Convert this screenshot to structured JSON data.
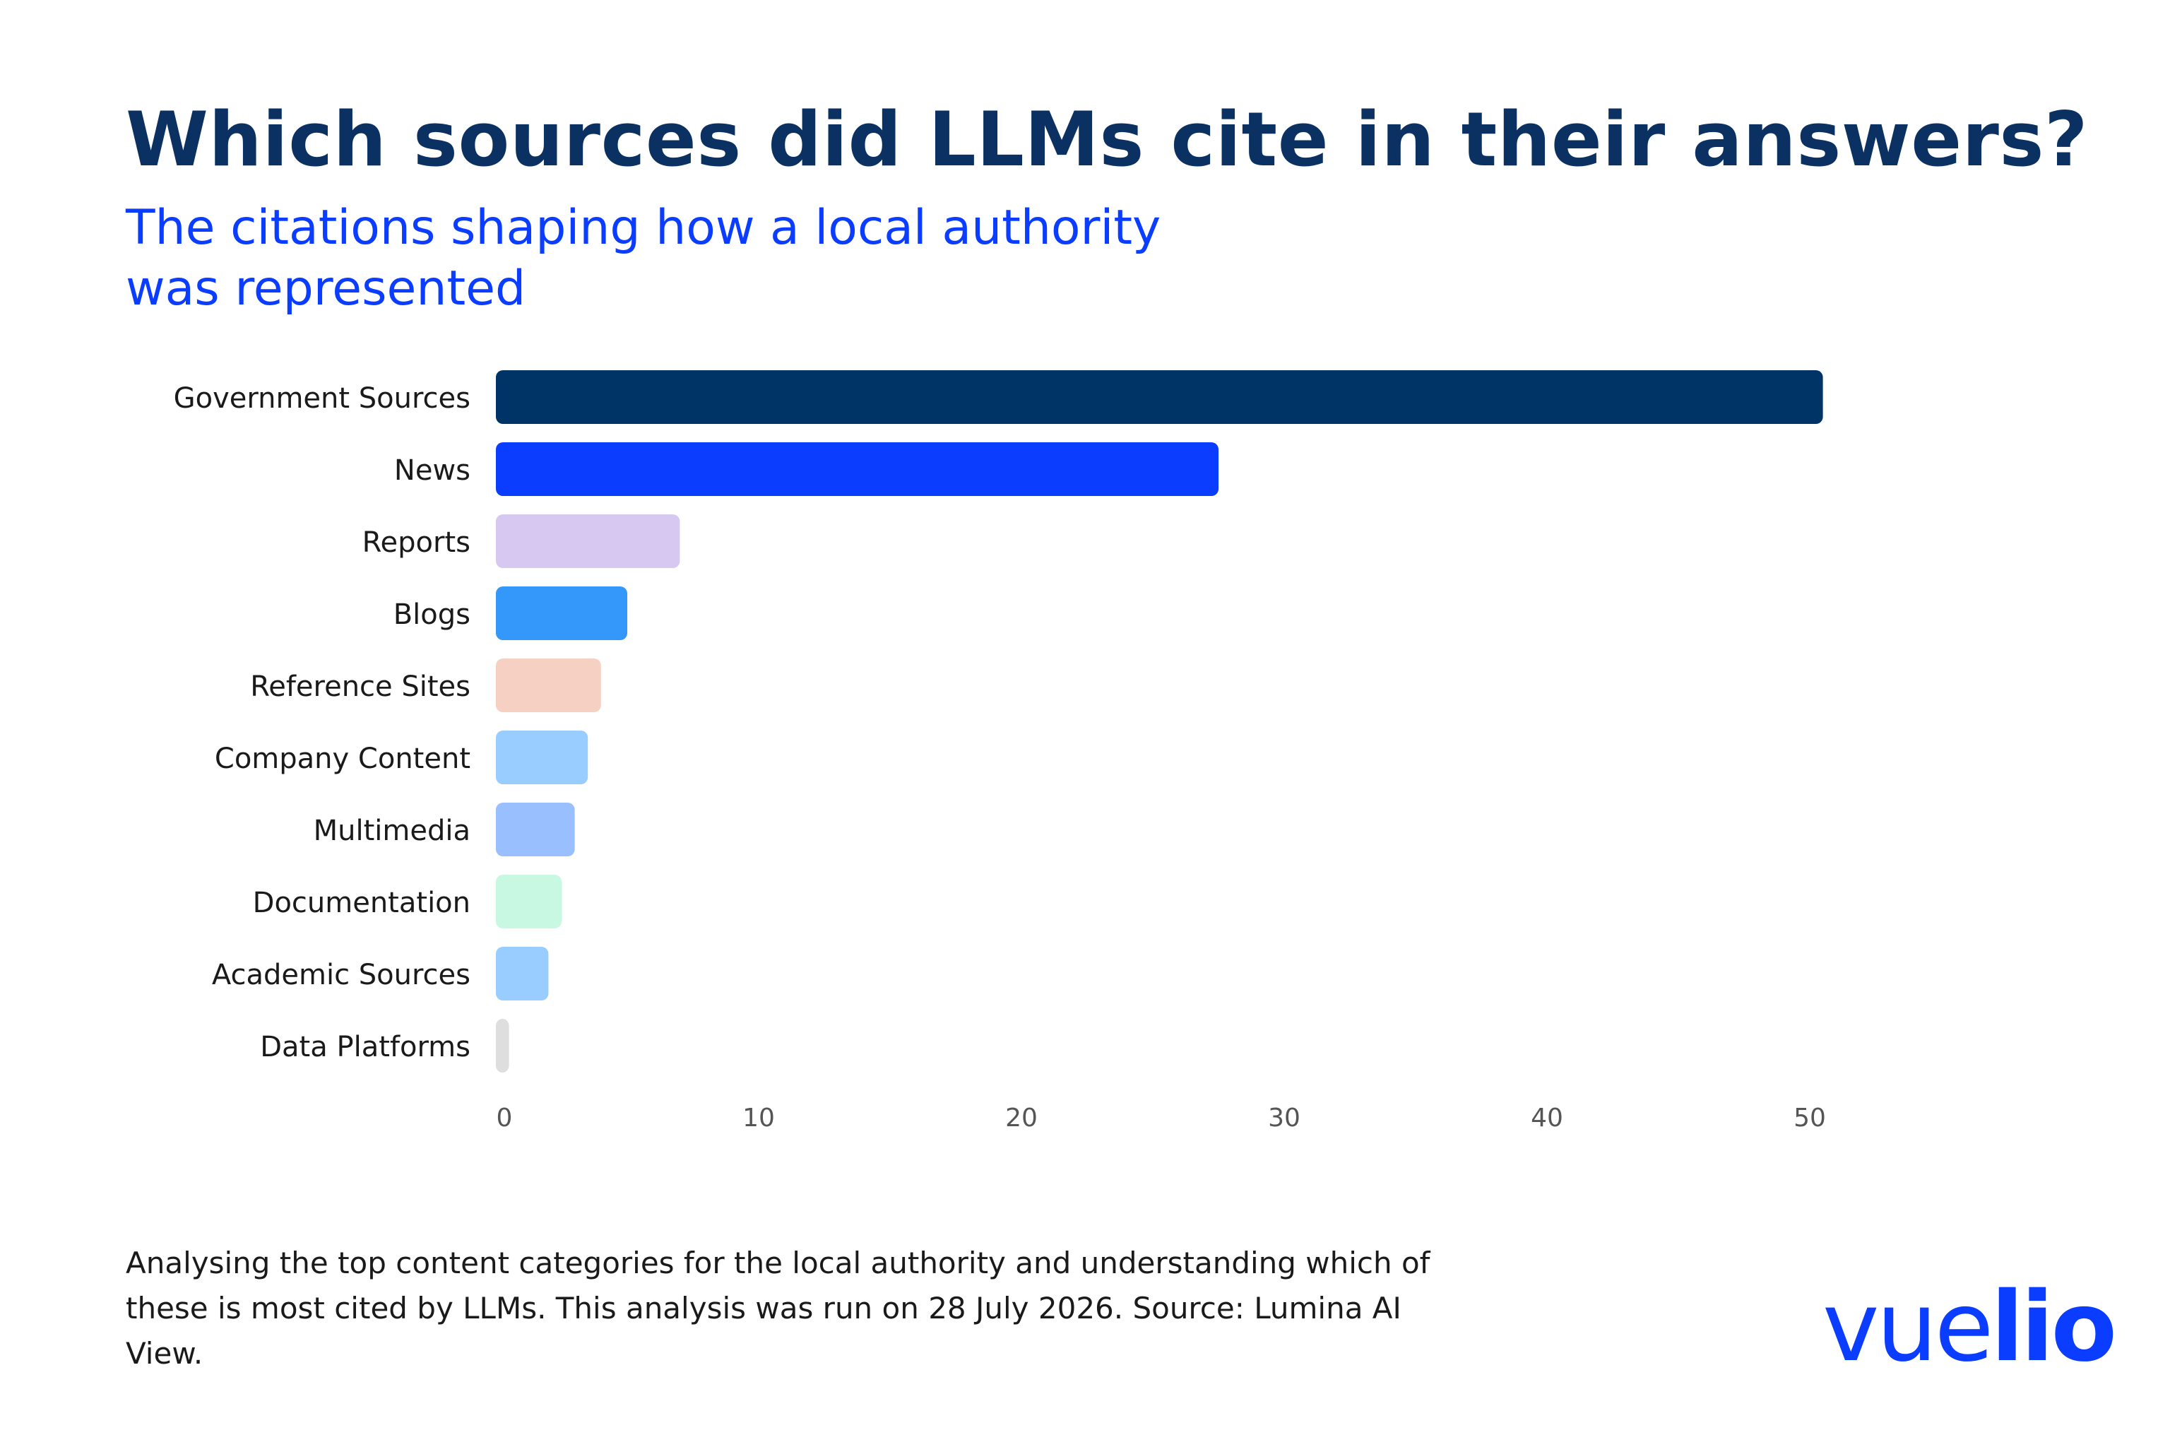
{
  "title": "Which sources did LLMs cite in their answers?",
  "subtitle": "The citations shaping how a local authority was represented",
  "footnote": "Analysing the top content categories for the local authority and understanding which of these is most cited by LLMs. This analysis was run on 28 July 2026. Source: Lumina AI View.",
  "logo": {
    "light": "vue",
    "bold": "lio"
  },
  "chart_data": {
    "type": "bar",
    "orientation": "horizontal",
    "categories": [
      "Government Sources",
      "News",
      "Reports",
      "Blogs",
      "Reference Sites",
      "Company Content",
      "Multimedia",
      "Documentation",
      "Academic Sources",
      "Data Platforms"
    ],
    "values": [
      50.5,
      27.5,
      7,
      5,
      4,
      3.5,
      3,
      2.5,
      2,
      0.5
    ],
    "colors": [
      "#003366",
      "#0a3dff",
      "#d6c8f0",
      "#3498fb",
      "#f6d0c2",
      "#99ccff",
      "#99bfff",
      "#c8f8e2",
      "#99ccff",
      "#dedede"
    ],
    "xticks": [
      0,
      10,
      20,
      30,
      40,
      50
    ],
    "xlim": [
      0,
      50.5
    ],
    "grid": false,
    "legend": "none"
  }
}
